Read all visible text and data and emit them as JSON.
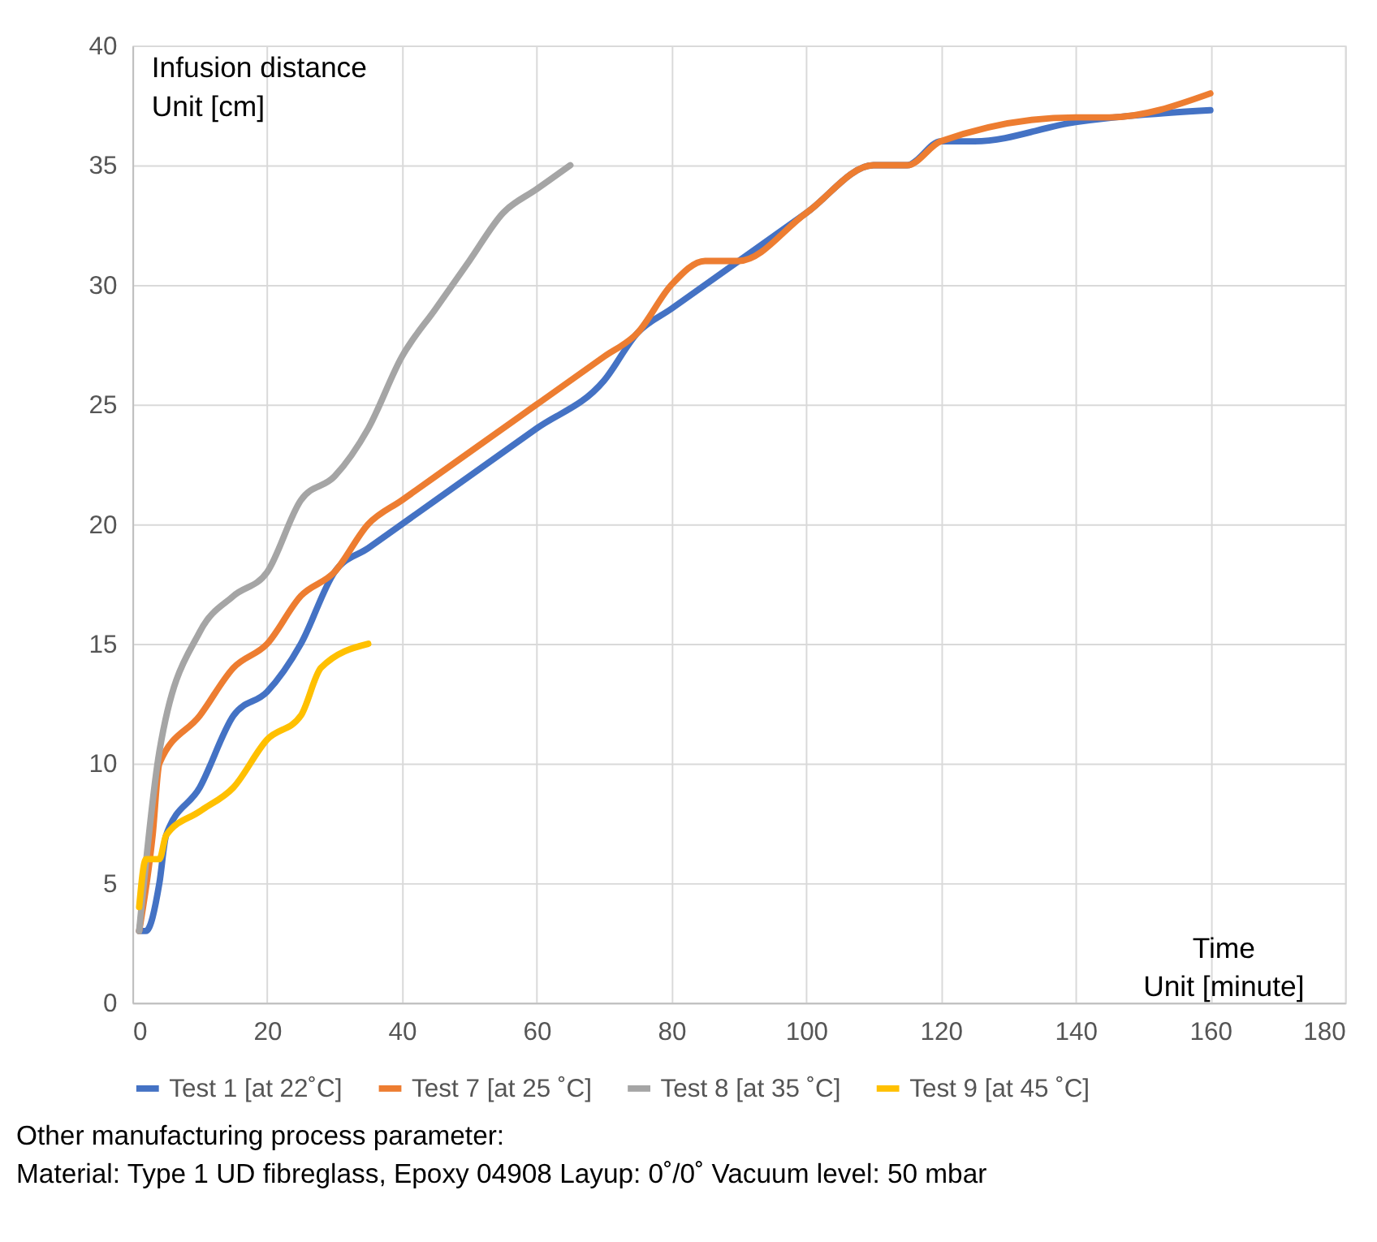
{
  "chart_data": {
    "type": "line",
    "xlabel": "Time\nUnit [minute]",
    "ylabel": "Infusion distance\nUnit [cm]",
    "xlim": [
      0,
      180
    ],
    "xticks": [
      0,
      20,
      40,
      60,
      80,
      100,
      120,
      140,
      160,
      180
    ],
    "ylim": [
      0,
      40
    ],
    "yticks": [
      0,
      5,
      10,
      15,
      20,
      25,
      30,
      35,
      40
    ],
    "grid": true,
    "legend": "bottom",
    "marker": "none",
    "line_style": "solid",
    "annotations": [
      "Other manufacturing process parameter:",
      "Material: Type 1 UD fibreglass, Epoxy 04908  Layup: 0˚/0˚  Vacuum level: 50 mbar"
    ],
    "series": [
      {
        "name": "Test 1 [at 22˚C]",
        "color": "#4472c4",
        "x": [
          1,
          2,
          4,
          5,
          10,
          15,
          20,
          25,
          30,
          35,
          40,
          50,
          60,
          70,
          75,
          80,
          90,
          100,
          110,
          115,
          120,
          125,
          140,
          160
        ],
        "values": [
          3,
          3,
          5,
          7,
          9,
          12,
          13,
          15,
          18,
          19,
          20,
          22,
          24,
          26,
          28,
          29,
          31,
          33,
          35,
          35,
          36,
          36,
          36.8,
          37.3
        ]
      },
      {
        "name": "Test 7 [at 25 ˚C]",
        "color": "#ed7d31",
        "x": [
          1,
          3,
          4,
          10,
          15,
          20,
          25,
          30,
          35,
          40,
          50,
          60,
          70,
          75,
          80,
          85,
          90,
          100,
          110,
          115,
          120,
          140,
          145,
          160
        ],
        "values": [
          3,
          7,
          10,
          12,
          14,
          15,
          17,
          18,
          20,
          21,
          23,
          25,
          27,
          28,
          30,
          31,
          31,
          33,
          35,
          35,
          36,
          37,
          37,
          38
        ]
      },
      {
        "name": "Test 8 [at 35 ˚C]",
        "color": "#a5a5a5",
        "x": [
          1,
          4,
          10,
          15,
          20,
          25,
          30,
          35,
          40,
          45,
          50,
          55,
          60,
          65
        ],
        "values": [
          3,
          10.5,
          15.5,
          17,
          18,
          21,
          22,
          24,
          27,
          29,
          31,
          33,
          34,
          35
        ]
      },
      {
        "name": "Test 9 [at 45  ˚C]",
        "color": "#ffc000",
        "x": [
          1,
          2,
          4,
          5,
          10,
          15,
          20,
          25,
          28,
          35
        ],
        "values": [
          4,
          6,
          6,
          7,
          8,
          9,
          11,
          12,
          14,
          15
        ]
      }
    ]
  }
}
